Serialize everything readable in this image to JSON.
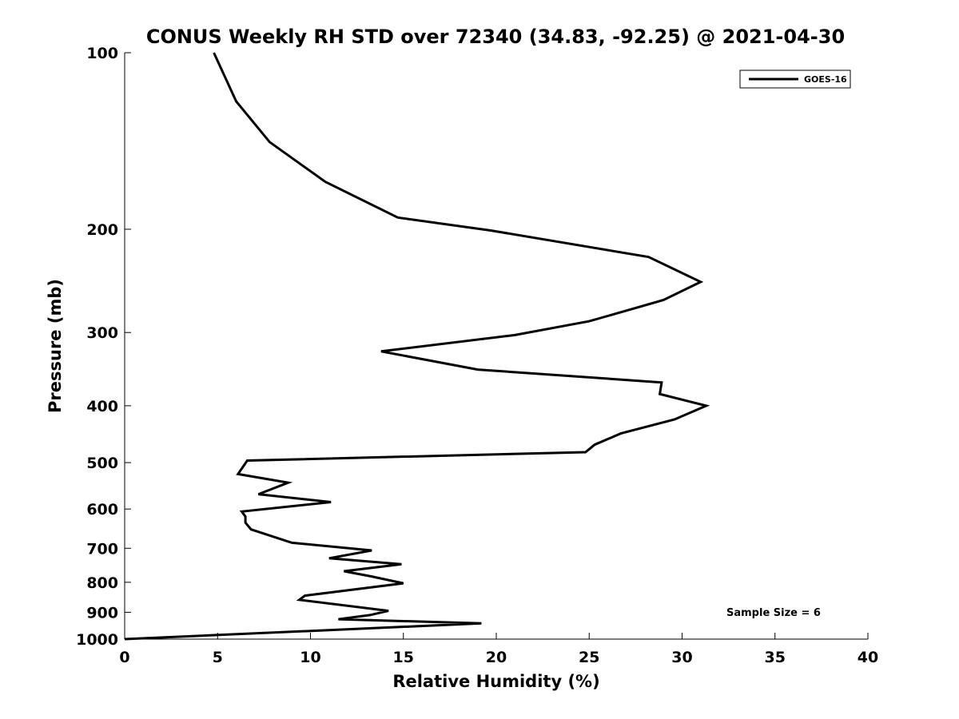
{
  "chart_data": {
    "type": "line",
    "title": "CONUS Weekly RH STD over 72340 (34.83, -92.25) @ 2021-04-30",
    "xlabel": "Relative Humidity (%)",
    "ylabel": "Pressure (mb)",
    "xlim": [
      0,
      40
    ],
    "ylim": [
      100,
      1000
    ],
    "y_scale": "log",
    "y_inverted": true,
    "x_ticks": [
      "0",
      "5",
      "10",
      "15",
      "20",
      "25",
      "30",
      "35",
      "40"
    ],
    "y_ticks": [
      "100",
      "200",
      "300",
      "400",
      "500",
      "600",
      "700",
      "800",
      "900",
      "1000"
    ],
    "grid": false,
    "legend_position": "top-right",
    "annotation": "Sample Size = 6",
    "series": [
      {
        "name": "GOES-16",
        "color": "#000000",
        "points": [
          [
            4.8,
            100
          ],
          [
            6.0,
            121
          ],
          [
            7.8,
            142
          ],
          [
            10.8,
            166
          ],
          [
            14.7,
            191
          ],
          [
            19.7,
            201
          ],
          [
            28.2,
            223
          ],
          [
            31.0,
            246
          ],
          [
            29.0,
            264
          ],
          [
            25.0,
            287
          ],
          [
            21.0,
            303
          ],
          [
            13.8,
            323
          ],
          [
            19.0,
            347
          ],
          [
            28.9,
            365
          ],
          [
            28.8,
            382
          ],
          [
            31.3,
            400
          ],
          [
            29.6,
            422
          ],
          [
            26.7,
            446
          ],
          [
            25.3,
            466
          ],
          [
            24.8,
            480
          ],
          [
            6.6,
            496
          ],
          [
            6.1,
            523
          ],
          [
            8.8,
            541
          ],
          [
            7.2,
            566
          ],
          [
            11.1,
            584
          ],
          [
            6.3,
            606
          ],
          [
            6.5,
            618
          ],
          [
            6.5,
            633
          ],
          [
            6.8,
            650
          ],
          [
            9.0,
            685
          ],
          [
            13.3,
            706
          ],
          [
            11.0,
            728
          ],
          [
            14.9,
            745
          ],
          [
            11.8,
            766
          ],
          [
            13.3,
            782
          ],
          [
            15.0,
            803
          ],
          [
            9.7,
            843
          ],
          [
            9.4,
            857
          ],
          [
            14.2,
            895
          ],
          [
            13.2,
            910
          ],
          [
            11.5,
            925
          ],
          [
            19.2,
            940
          ],
          [
            0.0,
            1000
          ]
        ]
      }
    ]
  }
}
